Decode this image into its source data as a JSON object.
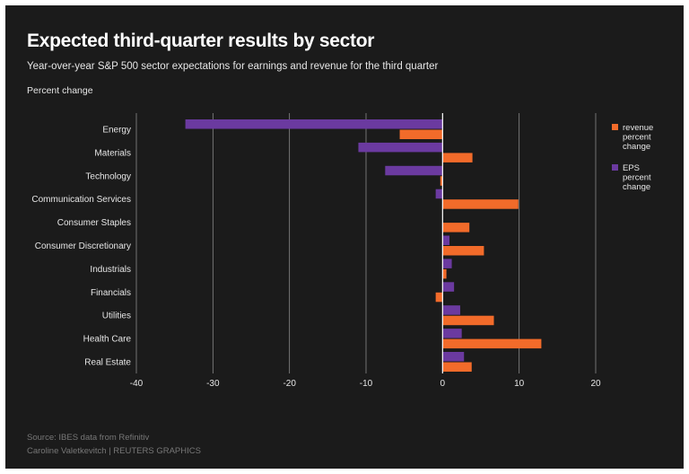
{
  "title": "Expected third-quarter results by sector",
  "subtitle": "Year-over-year S&P 500 sector expectations for earnings and revenue for the third quarter",
  "unit_label": "Percent change",
  "source": "Source: IBES data from Refinitiv",
  "credit": "Caroline Valetkevitch    | REUTERS GRAPHICS",
  "colors": {
    "revenue": "#f26b2a",
    "eps": "#6b3aa0",
    "grid": "#8a8a8a",
    "zero_line": "#ffffff",
    "background": "#1b1b1b"
  },
  "chart_data": {
    "type": "bar",
    "orientation": "horizontal",
    "categories": [
      "Energy",
      "Materials",
      "Technology",
      "Communication Services",
      "Consumer Staples",
      "Consumer Discretionary",
      "Industrials",
      "Financials",
      "Utilities",
      "Health Care",
      "Real Estate"
    ],
    "series": [
      {
        "name": "EPS percent change",
        "values": [
          -33.6,
          -11.0,
          -7.5,
          -0.9,
          0.0,
          0.9,
          1.2,
          1.5,
          2.3,
          2.5,
          2.8
        ]
      },
      {
        "name": "revenue percent change",
        "values": [
          -5.6,
          3.9,
          -0.3,
          9.9,
          3.5,
          5.4,
          0.5,
          -0.9,
          6.7,
          12.9,
          3.8
        ]
      }
    ],
    "xlim": [
      -40,
      20
    ],
    "xticks": [
      -40,
      -30,
      -20,
      -10,
      0,
      10,
      20
    ],
    "grid": true,
    "legend": {
      "placement": "top-right",
      "entries": [
        {
          "lines": [
            "revenue",
            "percent",
            "change"
          ]
        },
        {
          "lines": [
            "EPS",
            "percent",
            "change"
          ]
        }
      ]
    }
  }
}
